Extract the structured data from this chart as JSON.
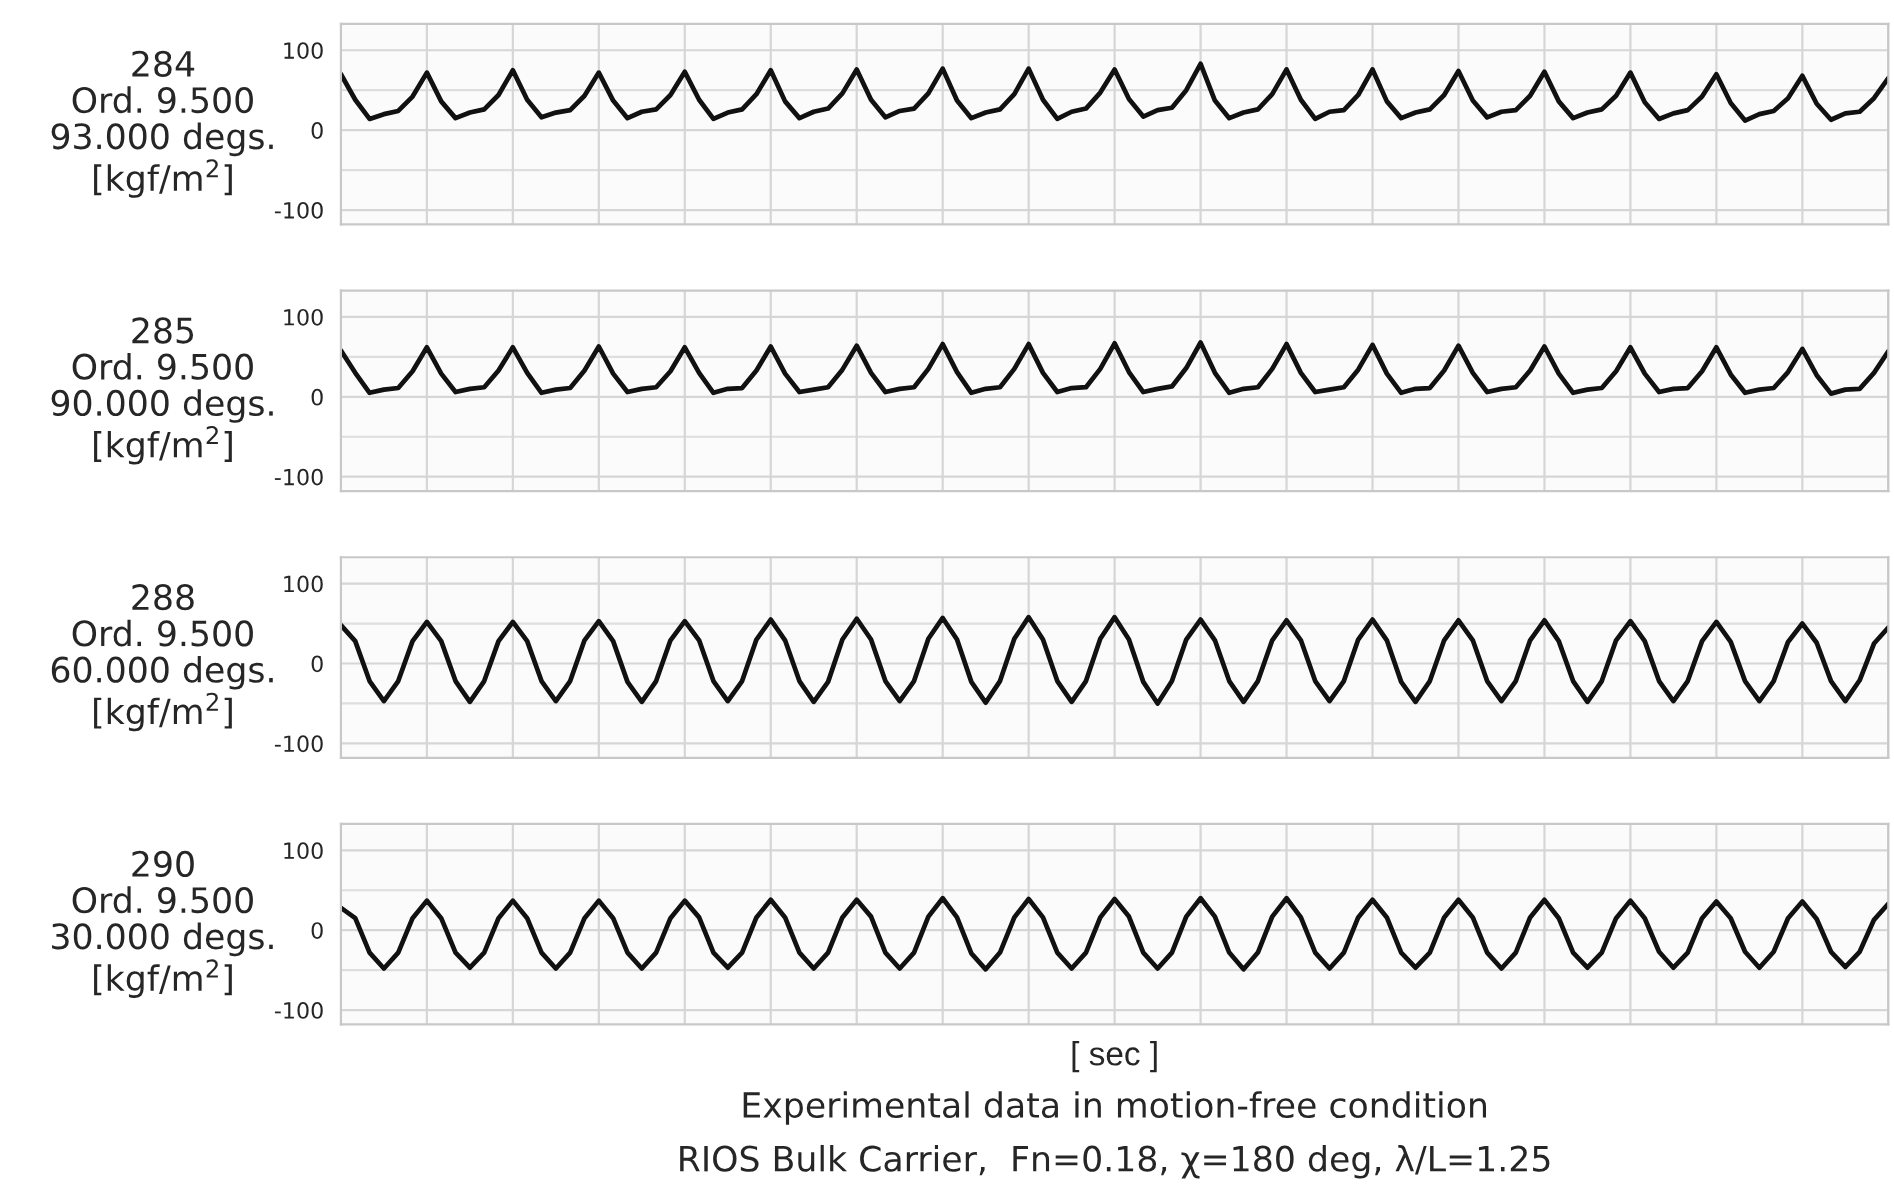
{
  "chart_data": [
    {
      "type": "line",
      "ylabel": "284\nOrd. 9.500\n93.000 degs.\n[kgf/m$^{2}$]",
      "tick_labels": "y",
      "grid": true,
      "categories": [
        null,
        null,
        null,
        null,
        null,
        null,
        null,
        null,
        null,
        null,
        null,
        null,
        null,
        null,
        null,
        null,
        null,
        null,
        null,
        null,
        null,
        null,
        null,
        null,
        null,
        null,
        null,
        null,
        null,
        null,
        null,
        null,
        null,
        null,
        null,
        null,
        null,
        null,
        null,
        null,
        null,
        null,
        null,
        null,
        null,
        null,
        null,
        null,
        null,
        null,
        null,
        null,
        null,
        null,
        null,
        null,
        null,
        null,
        null,
        null,
        null,
        null,
        null,
        null,
        null,
        null,
        null,
        null,
        null,
        null,
        null,
        null,
        null,
        null,
        null,
        null,
        null,
        null,
        null,
        null,
        null,
        null,
        null,
        null,
        null,
        null,
        null,
        null,
        null,
        null,
        null,
        null,
        null,
        null,
        null,
        null,
        null,
        null,
        null,
        null,
        null,
        null,
        null,
        null,
        null,
        null,
        null,
        null,
        null
      ],
      "ylim": [
        -118,
        133
      ],
      "yticks": [
        -100,
        0,
        100
      ],
      "ref_lines": [
        {
          "axis": "y",
          "value": -50,
          "color": "#dedede"
        },
        {
          "axis": "y",
          "value": 50,
          "color": "#dedede"
        }
      ],
      "series": [
        {
          "color": "#111111",
          "values": [
            70,
            38,
            14,
            20,
            24,
            42,
            72,
            36,
            15,
            22,
            26,
            44,
            75,
            38,
            16,
            22,
            25,
            43,
            72,
            37,
            15,
            23,
            26,
            44,
            73,
            38,
            14,
            22,
            26,
            45,
            75,
            36,
            15,
            23,
            27,
            46,
            76,
            38,
            16,
            24,
            27,
            46,
            77,
            37,
            15,
            22,
            26,
            45,
            77,
            38,
            14,
            23,
            27,
            47,
            76,
            39,
            17,
            25,
            28,
            50,
            83,
            37,
            15,
            22,
            26,
            45,
            76,
            38,
            14,
            23,
            25,
            44,
            76,
            36,
            15,
            22,
            26,
            44,
            74,
            37,
            16,
            23,
            25,
            43,
            73,
            36,
            15,
            22,
            26,
            43,
            72,
            35,
            14,
            21,
            25,
            42,
            70,
            34,
            12,
            20,
            24,
            40,
            68,
            33,
            13,
            21,
            23,
            40,
            65
          ]
        }
      ]
    },
    {
      "type": "line",
      "ylabel": "285\nOrd. 9.500\n90.000 degs.\n[kgf/m$^{2}$]",
      "tick_labels": "y",
      "grid": true,
      "categories": [
        null,
        null,
        null,
        null,
        null,
        null,
        null,
        null,
        null,
        null,
        null,
        null,
        null,
        null,
        null,
        null,
        null,
        null,
        null,
        null,
        null,
        null,
        null,
        null,
        null,
        null,
        null,
        null,
        null,
        null,
        null,
        null,
        null,
        null,
        null,
        null,
        null,
        null,
        null,
        null,
        null,
        null,
        null,
        null,
        null,
        null,
        null,
        null,
        null,
        null,
        null,
        null,
        null,
        null,
        null,
        null,
        null,
        null,
        null,
        null,
        null,
        null,
        null,
        null,
        null,
        null,
        null,
        null,
        null,
        null,
        null,
        null,
        null,
        null,
        null,
        null,
        null,
        null,
        null,
        null,
        null,
        null,
        null,
        null,
        null,
        null,
        null,
        null,
        null,
        null,
        null,
        null,
        null,
        null,
        null,
        null,
        null,
        null,
        null,
        null,
        null,
        null,
        null,
        null,
        null,
        null,
        null,
        null,
        null
      ],
      "ylim": [
        -118,
        133
      ],
      "yticks": [
        -100,
        0,
        100
      ],
      "ref_lines": [
        {
          "axis": "y",
          "value": -50,
          "color": "#dedede"
        },
        {
          "axis": "y",
          "value": 50,
          "color": "#dedede"
        }
      ],
      "series": [
        {
          "color": "#111111",
          "values": [
            58,
            30,
            5,
            9,
            11,
            32,
            62,
            29,
            6,
            10,
            12,
            33,
            62,
            30,
            5,
            9,
            11,
            33,
            63,
            29,
            6,
            10,
            12,
            32,
            62,
            30,
            5,
            10,
            11,
            33,
            63,
            29,
            6,
            9,
            12,
            34,
            64,
            30,
            6,
            10,
            12,
            35,
            66,
            31,
            5,
            10,
            12,
            35,
            66,
            30,
            6,
            11,
            12,
            35,
            67,
            31,
            6,
            10,
            13,
            36,
            68,
            30,
            5,
            10,
            12,
            35,
            66,
            30,
            6,
            9,
            12,
            34,
            65,
            29,
            5,
            10,
            11,
            33,
            64,
            30,
            6,
            10,
            12,
            33,
            63,
            29,
            5,
            9,
            11,
            32,
            62,
            29,
            6,
            10,
            11,
            32,
            62,
            28,
            5,
            9,
            11,
            31,
            60,
            27,
            4,
            9,
            10,
            30,
            57
          ]
        }
      ]
    },
    {
      "type": "line",
      "ylabel": "288\nOrd. 9.500\n60.000 degs.\n[kgf/m$^{2}$]",
      "tick_labels": "y",
      "grid": true,
      "categories": [
        null,
        null,
        null,
        null,
        null,
        null,
        null,
        null,
        null,
        null,
        null,
        null,
        null,
        null,
        null,
        null,
        null,
        null,
        null,
        null,
        null,
        null,
        null,
        null,
        null,
        null,
        null,
        null,
        null,
        null,
        null,
        null,
        null,
        null,
        null,
        null,
        null,
        null,
        null,
        null,
        null,
        null,
        null,
        null,
        null,
        null,
        null,
        null,
        null,
        null,
        null,
        null,
        null,
        null,
        null,
        null,
        null,
        null,
        null,
        null,
        null,
        null,
        null,
        null,
        null,
        null,
        null,
        null,
        null,
        null,
        null,
        null,
        null,
        null,
        null,
        null,
        null,
        null,
        null,
        null,
        null,
        null,
        null,
        null,
        null,
        null,
        null,
        null,
        null,
        null,
        null,
        null,
        null,
        null,
        null,
        null,
        null,
        null,
        null,
        null,
        null,
        null,
        null,
        null,
        null,
        null,
        null,
        null,
        null
      ],
      "ylim": [
        -118,
        133
      ],
      "yticks": [
        -100,
        0,
        100
      ],
      "ref_lines": [
        {
          "axis": "y",
          "value": -50,
          "color": "#dedede"
        },
        {
          "axis": "y",
          "value": 50,
          "color": "#dedede"
        }
      ],
      "series": [
        {
          "color": "#111111",
          "values": [
            48,
            28,
            -22,
            -47,
            -22,
            28,
            52,
            28,
            -22,
            -48,
            -22,
            28,
            52,
            28,
            -22,
            -47,
            -22,
            29,
            53,
            28,
            -23,
            -48,
            -22,
            29,
            53,
            29,
            -22,
            -47,
            -22,
            30,
            55,
            29,
            -22,
            -48,
            -23,
            30,
            56,
            30,
            -22,
            -47,
            -22,
            31,
            57,
            30,
            -23,
            -49,
            -22,
            31,
            58,
            30,
            -22,
            -48,
            -22,
            31,
            58,
            30,
            -23,
            -50,
            -22,
            30,
            55,
            29,
            -22,
            -48,
            -22,
            29,
            54,
            29,
            -22,
            -47,
            -22,
            30,
            55,
            29,
            -23,
            -48,
            -22,
            29,
            54,
            29,
            -22,
            -47,
            -22,
            29,
            54,
            28,
            -22,
            -48,
            -22,
            29,
            53,
            28,
            -22,
            -47,
            -22,
            28,
            52,
            27,
            -22,
            -47,
            -22,
            27,
            50,
            26,
            -22,
            -47,
            -21,
            25,
            45
          ]
        }
      ]
    },
    {
      "type": "line",
      "ylabel": "290\nOrd. 9.500\n30.000 degs.\n[kgf/m$^{2}$]",
      "tick_labels": "y",
      "grid": true,
      "xlabel": "[ sec ]",
      "annotations": [
        "Experimental data in motion-free condition",
        "RIOS Bulk Carrier,  Fn=0.18, χ=180 deg, λ/L=1.25"
      ],
      "categories": [
        null,
        null,
        null,
        null,
        null,
        null,
        null,
        null,
        null,
        null,
        null,
        null,
        null,
        null,
        null,
        null,
        null,
        null,
        null,
        null,
        null,
        null,
        null,
        null,
        null,
        null,
        null,
        null,
        null,
        null,
        null,
        null,
        null,
        null,
        null,
        null,
        null,
        null,
        null,
        null,
        null,
        null,
        null,
        null,
        null,
        null,
        null,
        null,
        null,
        null,
        null,
        null,
        null,
        null,
        null,
        null,
        null,
        null,
        null,
        null,
        null,
        null,
        null,
        null,
        null,
        null,
        null,
        null,
        null,
        null,
        null,
        null,
        null,
        null,
        null,
        null,
        null,
        null,
        null,
        null,
        null,
        null,
        null,
        null,
        null,
        null,
        null,
        null,
        null,
        null,
        null,
        null,
        null,
        null,
        null,
        null,
        null,
        null,
        null,
        null,
        null,
        null,
        null,
        null,
        null,
        null,
        null,
        null,
        null
      ],
      "ylim": [
        -118,
        133
      ],
      "yticks": [
        -100,
        0,
        100
      ],
      "ref_lines": [
        {
          "axis": "y",
          "value": -50,
          "color": "#dedede"
        },
        {
          "axis": "y",
          "value": 50,
          "color": "#dedede"
        }
      ],
      "series": [
        {
          "color": "#111111",
          "values": [
            28,
            15,
            -28,
            -48,
            -28,
            15,
            37,
            15,
            -28,
            -47,
            -28,
            15,
            37,
            15,
            -28,
            -48,
            -28,
            15,
            37,
            15,
            -28,
            -48,
            -28,
            15,
            37,
            16,
            -28,
            -47,
            -28,
            16,
            38,
            16,
            -28,
            -48,
            -28,
            16,
            38,
            17,
            -28,
            -48,
            -28,
            17,
            40,
            16,
            -29,
            -49,
            -28,
            16,
            39,
            16,
            -28,
            -48,
            -28,
            16,
            39,
            17,
            -28,
            -48,
            -28,
            17,
            40,
            17,
            -28,
            -49,
            -28,
            17,
            40,
            16,
            -28,
            -48,
            -28,
            16,
            38,
            16,
            -28,
            -47,
            -28,
            16,
            38,
            16,
            -28,
            -48,
            -28,
            16,
            38,
            15,
            -28,
            -47,
            -28,
            15,
            37,
            15,
            -27,
            -47,
            -28,
            15,
            36,
            15,
            -27,
            -47,
            -27,
            15,
            36,
            14,
            -27,
            -46,
            -27,
            13,
            33
          ]
        }
      ]
    }
  ]
}
